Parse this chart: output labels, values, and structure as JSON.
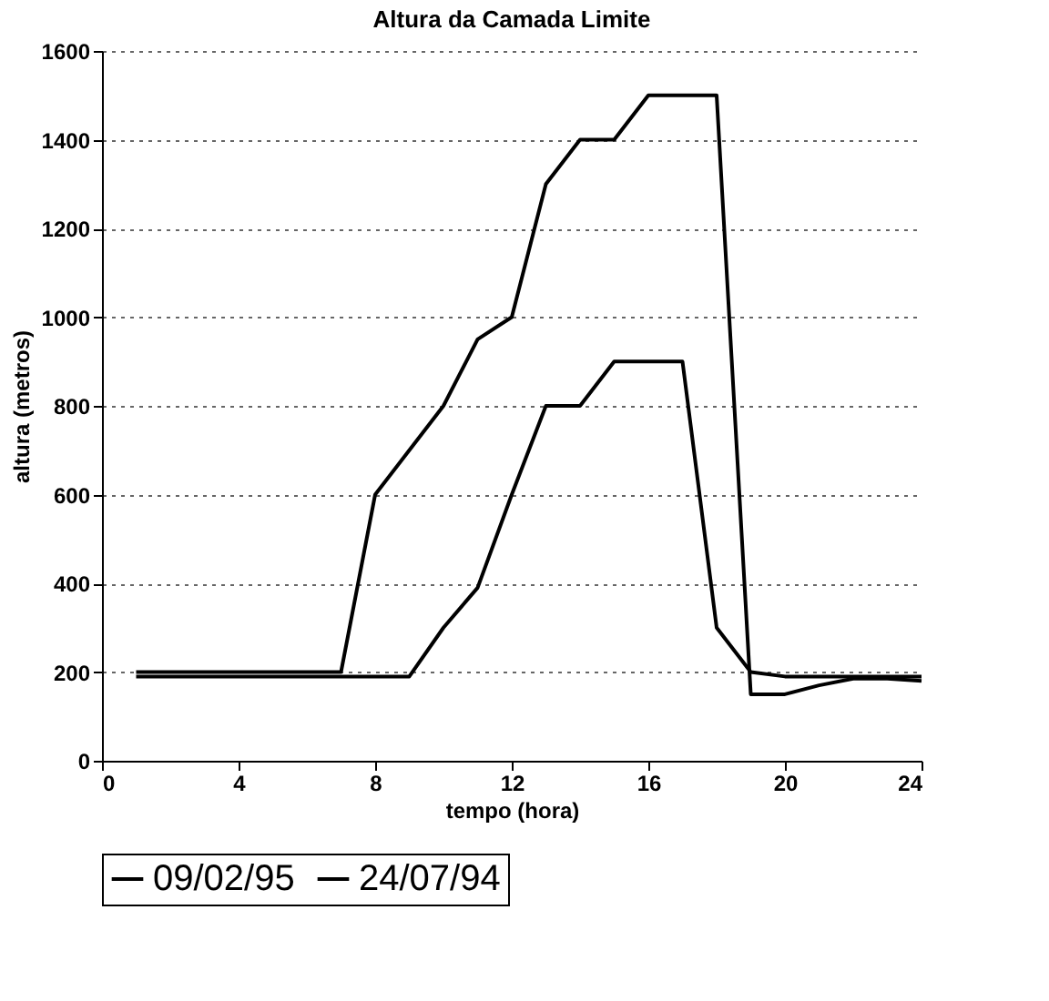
{
  "chart_data": {
    "type": "line",
    "title": "Altura da Camada Limite",
    "xlabel": "tempo (hora)",
    "ylabel": "altura (metros)",
    "xlim": [
      0,
      24
    ],
    "xticks": [
      0,
      4,
      8,
      12,
      16,
      20,
      24
    ],
    "ylim": [
      0,
      1600
    ],
    "yticks": [
      0,
      200,
      400,
      600,
      800,
      1000,
      1200,
      1400,
      1600
    ],
    "grid": "y",
    "legend": "bottom",
    "marker": "none",
    "line_style": "solid",
    "series": [
      {
        "name": "09/02/95",
        "color": "#000000",
        "x": [
          1,
          2,
          3,
          4,
          5,
          6,
          7,
          8,
          9,
          10,
          11,
          12,
          13,
          14,
          15,
          16,
          17,
          18,
          19,
          20,
          21,
          22,
          23,
          24
        ],
        "values": [
          190,
          190,
          190,
          190,
          190,
          190,
          190,
          190,
          190,
          300,
          390,
          600,
          800,
          800,
          900,
          900,
          900,
          300,
          200,
          190,
          190,
          190,
          190,
          190
        ]
      },
      {
        "name": "24/07/94",
        "color": "#000000",
        "x": [
          1,
          2,
          3,
          4,
          5,
          6,
          7,
          8,
          9,
          10,
          11,
          12,
          13,
          14,
          15,
          16,
          17,
          18,
          19,
          20,
          21,
          22,
          23,
          24
        ],
        "values": [
          200,
          200,
          200,
          200,
          200,
          200,
          200,
          600,
          700,
          800,
          950,
          1000,
          1300,
          1400,
          1400,
          1500,
          1500,
          1500,
          150,
          150,
          170,
          185,
          185,
          180
        ]
      }
    ]
  }
}
